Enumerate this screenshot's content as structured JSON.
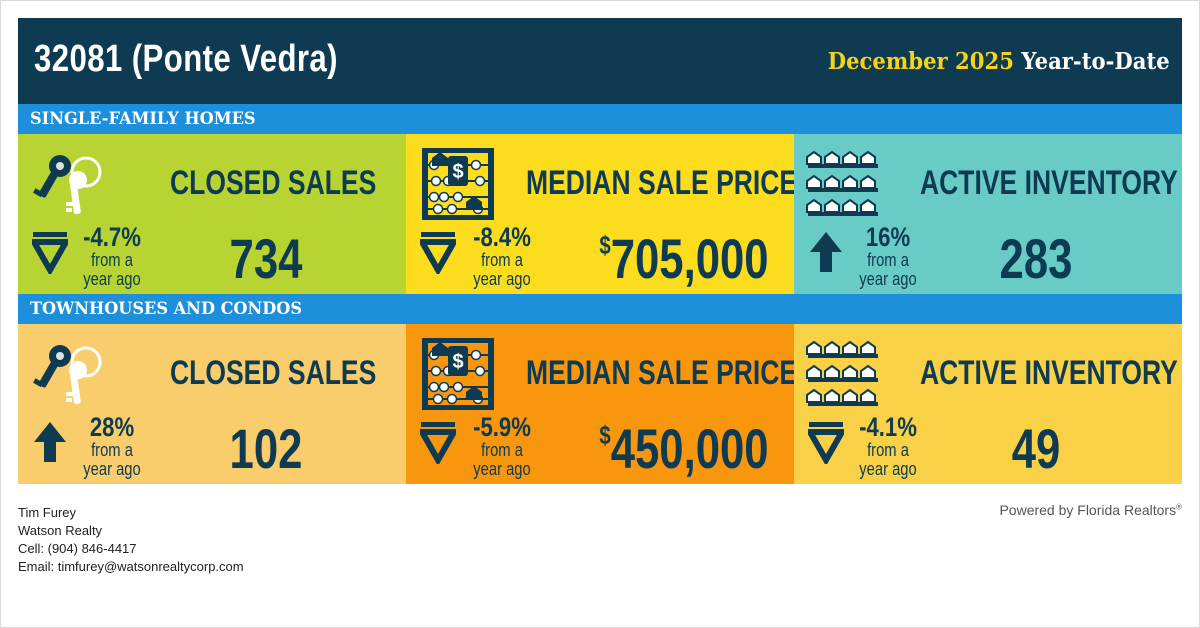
{
  "header": {
    "zip_title": "32081 (Ponte Vedra)",
    "period_highlight": "December 2025",
    "period_rest": "Year-to-Date"
  },
  "sections": [
    {
      "title": "SINGLE-FAMILY HOMES",
      "metrics": [
        {
          "label": "CLOSED SALES",
          "change": "-4.7%",
          "direction": "down",
          "sub1": "from a",
          "sub2": "year ago",
          "currency": "",
          "value": "734",
          "bg": "#b8d432",
          "icon": "keys-icon"
        },
        {
          "label": "MEDIAN SALE PRICE",
          "change": "-8.4%",
          "direction": "down",
          "sub1": "from a",
          "sub2": "year ago",
          "currency": "$",
          "value": "705,000",
          "bg": "#fbdd1e",
          "icon": "abacus-icon"
        },
        {
          "label": "ACTIVE INVENTORY",
          "change": "16%",
          "direction": "up",
          "sub1": "from a",
          "sub2": "year ago",
          "currency": "",
          "value": "283",
          "bg": "#69cbc6",
          "icon": "houses-icon"
        }
      ]
    },
    {
      "title": "TOWNHOUSES AND CONDOS",
      "metrics": [
        {
          "label": "CLOSED SALES",
          "change": "28%",
          "direction": "up",
          "sub1": "from a",
          "sub2": "year ago",
          "currency": "",
          "value": "102",
          "bg": "#f9cd6b",
          "icon": "keys-icon"
        },
        {
          "label": "MEDIAN SALE PRICE",
          "change": "-5.9%",
          "direction": "down",
          "sub1": "from a",
          "sub2": "year ago",
          "currency": "$",
          "value": "450,000",
          "bg": "#f8960e",
          "icon": "abacus-icon"
        },
        {
          "label": "ACTIVE INVENTORY",
          "change": "-4.1%",
          "direction": "down",
          "sub1": "from a",
          "sub2": "year ago",
          "currency": "",
          "value": "49",
          "bg": "#f9d146",
          "icon": "houses-icon"
        }
      ]
    }
  ],
  "contact": {
    "name": "Tim Furey",
    "company": "Watson Realty",
    "cell": "Cell: (904) 846-4417",
    "email": "Email: timfurey@watsonrealtycorp.com"
  },
  "powered_by": "Powered by Florida Realtors",
  "powered_mark": "®",
  "colors": {
    "navy": "#0e3a52",
    "blue_bar": "#1e8fdb",
    "highlight_yellow": "#f5d21e"
  }
}
